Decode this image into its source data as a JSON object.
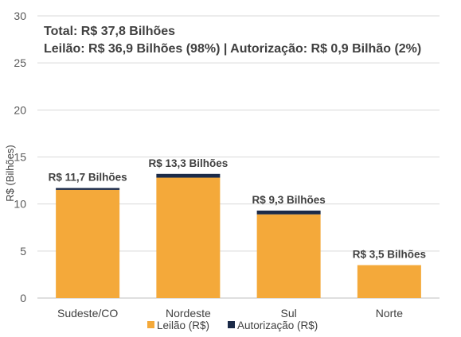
{
  "chart_data": {
    "type": "bar",
    "stacked": true,
    "title_lines": [
      "Total: R$ 37,8 Bilhões",
      "Leilão: R$ 36,9 Bilhões (98%) | Autorização: R$ 0,9 Bilhão (2%)"
    ],
    "ylabel": "R$ (Bilhões)",
    "xlabel": "",
    "ylim": [
      0,
      30
    ],
    "yticks": [
      0,
      5,
      10,
      15,
      20,
      25,
      30
    ],
    "grid": true,
    "legend_position": "bottom",
    "categories": [
      "Sudeste/CO",
      "Nordeste",
      "Sul",
      "Norte"
    ],
    "series": [
      {
        "name": "Leilão (R$)",
        "color": "#F4A93A",
        "values": [
          11.5,
          12.8,
          8.9,
          3.5
        ]
      },
      {
        "name": "Autorização (R$)",
        "color": "#1B2A48",
        "values": [
          0.2,
          0.4,
          0.4,
          0.0
        ]
      }
    ],
    "bar_labels": [
      "R$ 11,7 Bilhões",
      "R$ 13,3 Bilhões",
      "R$ 9,3 Bilhões",
      "R$ 3,5 Bilhões"
    ]
  }
}
